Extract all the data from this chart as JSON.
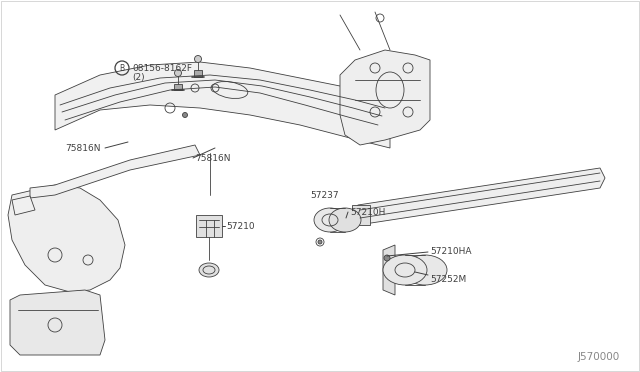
{
  "bg_color": "#ffffff",
  "line_color": "#404040",
  "text_color": "#404040",
  "label_color": "#666666",
  "diagram_id": "J570000",
  "lw_main": 0.8,
  "lw_thin": 0.6,
  "lw_thick": 1.2,
  "border_color": "#c8c8c8",
  "labels": {
    "bolt": "B 08156-8162F",
    "bolt2": "  (2)",
    "l75816N_left": "75816N",
    "l75816N_right": "75816N",
    "l57210": "57210",
    "l57237": "57237",
    "l57210H": "57210H",
    "l57252M": "57252M",
    "l57210HA": "57210HA"
  }
}
